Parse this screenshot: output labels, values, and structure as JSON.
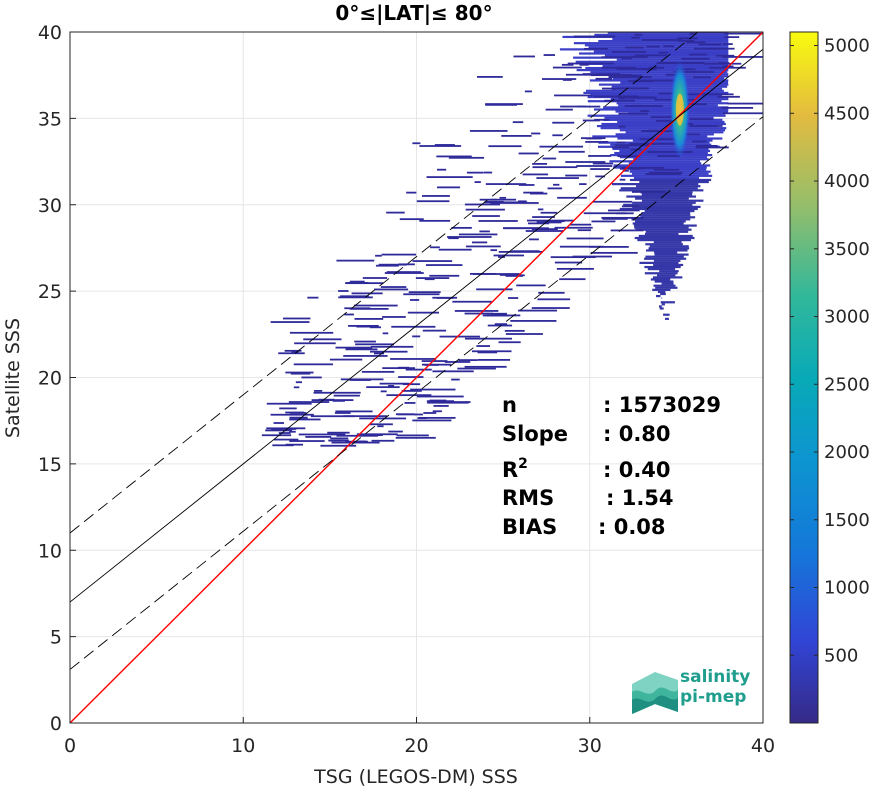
{
  "chart_data": {
    "type": "heatmap",
    "title": "0°≤|LAT|≤ 80°",
    "xlabel": "TSG (LEGOS-DM) SSS",
    "ylabel": "Satellite SSS",
    "xlim": [
      0,
      40
    ],
    "ylim": [
      0,
      40
    ],
    "xticks": [
      0,
      10,
      20,
      30,
      40
    ],
    "yticks": [
      0,
      5,
      10,
      15,
      20,
      25,
      30,
      35,
      40
    ],
    "grid": true,
    "colorbar": {
      "range": [
        0,
        5100
      ],
      "ticks": [
        500,
        1000,
        1500,
        2000,
        2500,
        3000,
        3500,
        4000,
        4500,
        5000
      ],
      "colormap": "parula"
    },
    "density": {
      "peak": [
        35.2,
        35.5
      ],
      "peak_count": 5100,
      "main_cluster": {
        "x": [
          29,
          38
        ],
        "y": [
          21,
          40
        ]
      },
      "sparse_extent": {
        "x": [
          11,
          38
        ],
        "y": [
          16,
          40
        ]
      }
    },
    "lines": [
      {
        "name": "1:1",
        "color": "#ff0000",
        "style": "solid",
        "x": [
          0,
          40
        ],
        "y": [
          0,
          40
        ]
      },
      {
        "name": "fit",
        "color": "#000000",
        "style": "solid",
        "x": [
          0,
          40
        ],
        "y": [
          7.0,
          39.0
        ]
      },
      {
        "name": "fit_upper",
        "color": "#000000",
        "style": "dashed",
        "x": [
          0,
          40
        ],
        "y": [
          11.0,
          43.0
        ]
      },
      {
        "name": "fit_lower",
        "color": "#000000",
        "style": "dashed",
        "x": [
          0,
          40
        ],
        "y": [
          3.1,
          35.1
        ]
      }
    ],
    "stats": [
      {
        "label": "n",
        "value": ": 1573029"
      },
      {
        "label": "Slope",
        "value": ": 0.80"
      },
      {
        "label": "R",
        "sup": "2",
        "value": ": 0.40"
      },
      {
        "label": "RMS",
        "value": ": 1.54"
      },
      {
        "label": "BIAS",
        "value": ": 0.08"
      }
    ]
  },
  "logo": {
    "line1": "salinity",
    "line2": "pi-mep"
  }
}
